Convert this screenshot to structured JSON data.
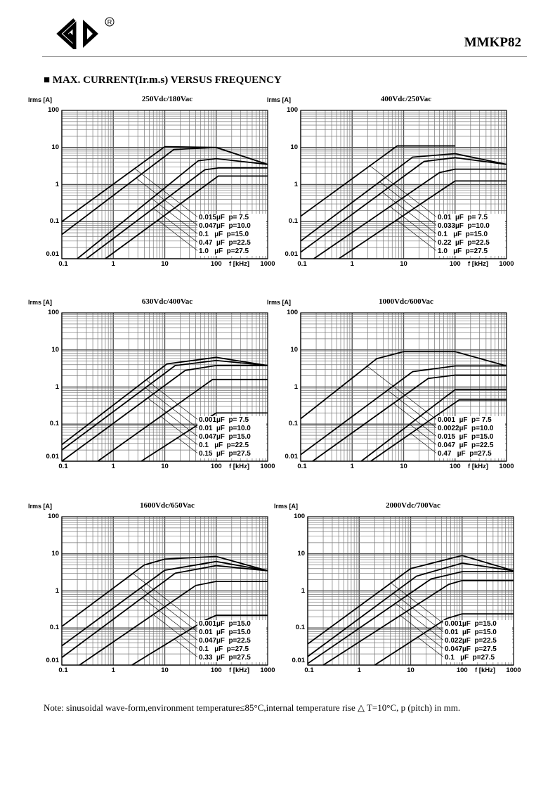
{
  "header": {
    "brand": "GD",
    "registered_mark": "®",
    "model": "MMKP82"
  },
  "section_title": "■ MAX. CURRENT(Ir.m.s) VERSUS FREQUENCY",
  "note": "Note: sinusoidal wave-form,environment temperature≤85°C,internal temperature rise △ T=10°C, p (pitch) in mm.",
  "chart_data": [
    {
      "type": "line",
      "title": "250Vdc/180Vac",
      "ylabel": "Irms [A]",
      "xlabel": "f [kHz]",
      "xscale": "log",
      "yscale": "log",
      "xlim": [
        0.1,
        1000
      ],
      "ylim": [
        0.01,
        100
      ],
      "grid": true,
      "legend": "bottom-right",
      "xticks": [
        "0.1",
        "1",
        "10",
        "100",
        "1000"
      ],
      "yticks": [
        "100",
        "10",
        "1",
        "0.1",
        "0.01"
      ],
      "series": [
        {
          "name": "0.015µF  p= 7.5",
          "points": [
            [
              0.1,
              0.1
            ],
            [
              10,
              10.5
            ],
            [
              100,
              10
            ],
            [
              1000,
              3.5
            ]
          ]
        },
        {
          "name": "0.047µF  p=10.0",
          "points": [
            [
              0.1,
              0.045
            ],
            [
              15,
              8.8
            ],
            [
              100,
              10
            ],
            [
              1000,
              3.5
            ]
          ]
        },
        {
          "name": "0.1   µF  p=15.0",
          "points": [
            [
              0.2,
              0.01
            ],
            [
              45,
              4.4
            ],
            [
              100,
              5
            ],
            [
              1000,
              3.5
            ]
          ]
        },
        {
          "name": "0.47  µF  p=22.5",
          "points": [
            [
              0.3,
              0.01
            ],
            [
              60,
              2.5
            ],
            [
              110,
              2.8
            ],
            [
              1000,
              2.8
            ]
          ]
        },
        {
          "name": "1.0   µF  p=27.5",
          "points": [
            [
              0.7,
              0.01
            ],
            [
              110,
              1.7
            ],
            [
              1000,
              1.7
            ]
          ]
        }
      ]
    },
    {
      "type": "line",
      "title": "400Vdc/250Vac",
      "ylabel": "Irms [A]",
      "xlabel": "f [kHz]",
      "xscale": "log",
      "yscale": "log",
      "xlim": [
        0.1,
        1000
      ],
      "ylim": [
        0.01,
        100
      ],
      "grid": true,
      "legend": "bottom-right",
      "xticks": [
        "0.1",
        "1",
        "10",
        "100",
        "1000"
      ],
      "yticks": [
        "100",
        "10",
        "1",
        "0.1",
        "0.01"
      ],
      "series": [
        {
          "name": "0.01  µF  p= 7.5",
          "points": [
            [
              0.1,
              0.14
            ],
            [
              7.5,
              11
            ],
            [
              100,
              11
            ]
          ]
        },
        {
          "name": "0.033µF  p=10.0",
          "points": [
            [
              0.1,
              0.03
            ],
            [
              15,
              5.5
            ],
            [
              100,
              6.8
            ],
            [
              1000,
              3.5
            ]
          ]
        },
        {
          "name": "0.1   µF  p=15.0",
          "points": [
            [
              0.1,
              0.015
            ],
            [
              25,
              4.2
            ],
            [
              100,
              5.3
            ],
            [
              1000,
              3.5
            ]
          ]
        },
        {
          "name": "0.22  µF  p=22.5",
          "points": [
            [
              0.18,
              0.01
            ],
            [
              50,
              2.1
            ],
            [
              100,
              2.6
            ],
            [
              1000,
              2.6
            ]
          ]
        },
        {
          "name": "1.0   µF  p=27.5",
          "points": [
            [
              0.55,
              0.01
            ],
            [
              100,
              1.25
            ],
            [
              1000,
              1.25
            ]
          ]
        }
      ]
    },
    {
      "type": "line",
      "title": "630Vdc/400Vac",
      "ylabel": "Irms [A]",
      "xlabel": "f [kHz]",
      "xscale": "log",
      "yscale": "log",
      "xlim": [
        0.1,
        1000
      ],
      "ylim": [
        0.01,
        100
      ],
      "grid": true,
      "legend": "bottom-right",
      "xticks": [
        "0.1",
        "1",
        "10",
        "100",
        "1000"
      ],
      "yticks": [
        "100",
        "10",
        "1",
        "0.1",
        "0.01"
      ],
      "series": [
        {
          "name": "0.001µF  p= 7.5",
          "points": [
            [
              0.1,
              0.028
            ],
            [
              11,
              4.2
            ],
            [
              100,
              6.3
            ],
            [
              1000,
              3.8
            ]
          ]
        },
        {
          "name": "0.01  µF  p=10.0",
          "points": [
            [
              0.1,
              0.02
            ],
            [
              16,
              3.8
            ],
            [
              100,
              5.2
            ],
            [
              1000,
              3.8
            ]
          ]
        },
        {
          "name": "0.047µF  p=15.0",
          "points": [
            [
              0.1,
              0.01
            ],
            [
              25,
              2.8
            ],
            [
              100,
              3.8
            ],
            [
              1000,
              3.8
            ]
          ]
        },
        {
          "name": "0.1   µF  p=22.5",
          "points": [
            [
              0.5,
              0.01
            ],
            [
              85,
              1.6
            ],
            [
              1000,
              1.6
            ]
          ]
        },
        {
          "name": "0.15  µF  p=27.5",
          "points": [
            [
              3.5,
              0.01
            ],
            [
              100,
              0.2
            ],
            [
              1000,
              0.2
            ]
          ]
        }
      ]
    },
    {
      "type": "line",
      "title": "1000Vdc/600Vac",
      "ylabel": "Irms [A]",
      "xlabel": "f [kHz]",
      "xscale": "log",
      "yscale": "log",
      "xlim": [
        0.1,
        1000
      ],
      "ylim": [
        0.01,
        100
      ],
      "grid": true,
      "legend": "bottom-right",
      "xticks": [
        "0.1",
        "1",
        "10",
        "100",
        "1000"
      ],
      "yticks": [
        "100",
        "10",
        "1",
        "0.1",
        "0.01"
      ],
      "series": [
        {
          "name": "0.001  µF  p= 7.5",
          "points": [
            [
              0.1,
              0.14
            ],
            [
              3,
              5.8
            ],
            [
              10,
              9
            ],
            [
              100,
              9
            ],
            [
              1000,
              3.7
            ]
          ]
        },
        {
          "name": "0.0022µF  p=10.0",
          "points": [
            [
              0.1,
              0.015
            ],
            [
              15,
              2.6
            ],
            [
              100,
              3.7
            ],
            [
              1000,
              3.7
            ]
          ]
        },
        {
          "name": "0.015  µF  p=15.0",
          "points": [
            [
              0.17,
              0.01
            ],
            [
              30,
              1.7
            ],
            [
              100,
              2.1
            ],
            [
              1000,
              2.1
            ]
          ]
        },
        {
          "name": "0.047  µF  p=22.5",
          "points": [
            [
              1.5,
              0.01
            ],
            [
              100,
              0.85
            ],
            [
              1000,
              0.85
            ]
          ]
        },
        {
          "name": "0.47   µF  p=27.5",
          "points": [
            [
              2.3,
              0.01
            ],
            [
              120,
              0.45
            ],
            [
              1000,
              0.45
            ]
          ]
        }
      ]
    },
    {
      "type": "line",
      "title": "1600Vdc/650Vac",
      "ylabel": "Irms [A]",
      "xlabel": "f [kHz]",
      "xscale": "log",
      "yscale": "log",
      "xlim": [
        0.1,
        1000
      ],
      "ylim": [
        0.01,
        100
      ],
      "grid": true,
      "legend": "bottom-right",
      "xticks": [
        "0.1",
        "1",
        "10",
        "100",
        "1000"
      ],
      "yticks": [
        "100",
        "10",
        "1",
        "0.1",
        "0.01"
      ],
      "series": [
        {
          "name": "0.001µF  p=15.0",
          "points": [
            [
              0.1,
              0.11
            ],
            [
              4,
              5
            ],
            [
              10,
              7.2
            ],
            [
              100,
              8.5
            ],
            [
              1000,
              3.5
            ]
          ]
        },
        {
          "name": "0.01  µF  p=15.0",
          "points": [
            [
              0.1,
              0.033
            ],
            [
              10,
              3.6
            ],
            [
              100,
              6.2
            ],
            [
              1000,
              3.5
            ]
          ]
        },
        {
          "name": "0.047µF  p=22.5",
          "points": [
            [
              0.1,
              0.016
            ],
            [
              16,
              3
            ],
            [
              100,
              4.8
            ],
            [
              1000,
              3.5
            ]
          ]
        },
        {
          "name": "0.1   µF  p=27.5",
          "points": [
            [
              0.22,
              0.01
            ],
            [
              40,
              1.4
            ],
            [
              100,
              1.8
            ],
            [
              1000,
              1.8
            ]
          ]
        },
        {
          "name": "0.33  µF  p=27.5",
          "points": [
            [
              2.3,
              0.01
            ],
            [
              60,
              0.16
            ],
            [
              100,
              0.22
            ],
            [
              1000,
              0.22
            ]
          ]
        }
      ]
    },
    {
      "type": "line",
      "title": "2000Vdc/700Vac",
      "ylabel": "Irms [A]",
      "xlabel": "f [kHz]",
      "xscale": "log",
      "yscale": "log",
      "xlim": [
        0.1,
        1000
      ],
      "ylim": [
        0.01,
        100
      ],
      "grid": true,
      "legend": "bottom-right",
      "xticks": [
        "0.1",
        "1",
        "10",
        "100",
        "1000"
      ],
      "yticks": [
        "100",
        "10",
        "1",
        "0.1",
        "0.01"
      ],
      "series": [
        {
          "name": "0.001µF  p=15.0",
          "points": [
            [
              0.1,
              0.037
            ],
            [
              10,
              4
            ],
            [
              100,
              9
            ],
            [
              1000,
              3.5
            ]
          ]
        },
        {
          "name": "0.01  µF  p=15.0",
          "points": [
            [
              0.1,
              0.017
            ],
            [
              13,
              2.5
            ],
            [
              100,
              5.6
            ],
            [
              1000,
              3.5
            ]
          ]
        },
        {
          "name": "0.022µF  p=22.5",
          "points": [
            [
              0.1,
              0.011
            ],
            [
              25,
              2.1
            ],
            [
              100,
              3.3
            ],
            [
              1000,
              3.3
            ]
          ]
        },
        {
          "name": "0.047µF  p=27.5",
          "points": [
            [
              0.2,
              0.01
            ],
            [
              55,
              1.5
            ],
            [
              100,
              1.9
            ],
            [
              1000,
              1.9
            ]
          ]
        },
        {
          "name": "0.1   µF  p=27.5",
          "points": [
            [
              2,
              0.01
            ],
            [
              50,
              0.18
            ],
            [
              100,
              0.24
            ],
            [
              1000,
              0.24
            ]
          ]
        }
      ]
    }
  ]
}
